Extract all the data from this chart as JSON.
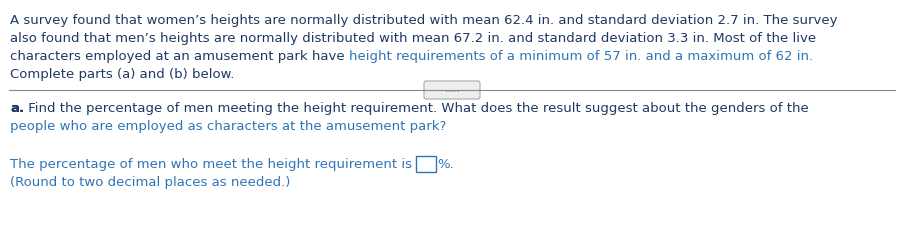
{
  "bg_color": "#ffffff",
  "dark": "#1f3864",
  "blue": "#2e75b6",
  "gray": "#888888",
  "line1": "A survey found that women’s heights are normally distributed with mean 62.4 in. and standard deviation 2.7 in. The survey",
  "line2": "also found that men’s heights are normally distributed with mean 67.2 in. and standard deviation 3.3 in. Most of the live",
  "line3a": "characters employed at an amusement park have ",
  "line3b": "height requirements of a minimum of 57 in. and a maximum of 62 in.",
  "line4": "Complete parts (a) and (b) below.",
  "parta_bold": "a.",
  "parta_rest": " Find the percentage of men meeting the height requirement. What does the result suggest about the genders of the",
  "parta_line2": "people who are employed as characters at the amusement park?",
  "ans_prefix": "The percentage of men who meet the height requirement is ",
  "ans_suffix": "%.",
  "note": "(Round to two decimal places as needed.)",
  "dots": ".....",
  "fs": 9.5,
  "fs_dots": 6.5
}
